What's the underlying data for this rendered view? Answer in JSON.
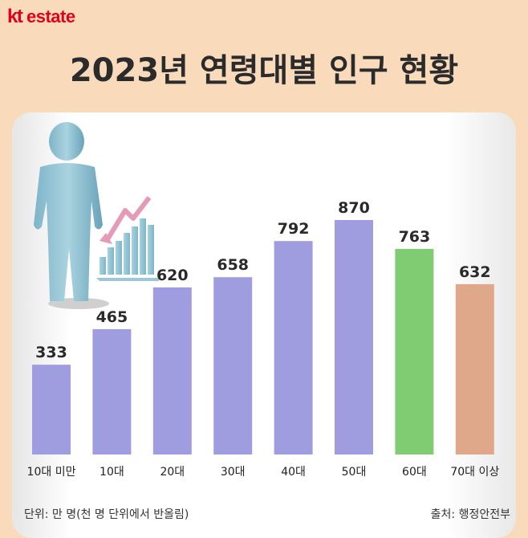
{
  "brand": {
    "logo_kt": "kt",
    "logo_estate": "estate",
    "logo_color": "#e3001b"
  },
  "title": "2023년 연령대별 인구 현황",
  "footer": {
    "unit_note": "단위: 만 명(천 명 단위에서 반올림)",
    "source_note": "출처: 행정안전부"
  },
  "colors": {
    "background": "#f9dbbc",
    "bar_default": "#9f9ce0",
    "bar_60s": "#7fcc73",
    "bar_70plus": "#e0a88a"
  },
  "illustration": {
    "icon": "person-with-declining-graph-icon"
  },
  "chart_data": {
    "type": "bar",
    "title": "2023년 연령대별 인구 현황",
    "categories": [
      "10대 미만",
      "10대",
      "20대",
      "30대",
      "40대",
      "50대",
      "60대",
      "70대 이상"
    ],
    "values": [
      333,
      465,
      620,
      658,
      792,
      870,
      763,
      632
    ],
    "value_labels": [
      "333",
      "465",
      "620",
      "658",
      "792",
      "870",
      "763",
      "632"
    ],
    "unit": "만 명",
    "ylim": [
      0,
      1000
    ],
    "grid": false,
    "legend": "none",
    "bar_colors": [
      "#9f9ce0",
      "#9f9ce0",
      "#9f9ce0",
      "#9f9ce0",
      "#9f9ce0",
      "#9f9ce0",
      "#7fcc73",
      "#e0a88a"
    ]
  }
}
